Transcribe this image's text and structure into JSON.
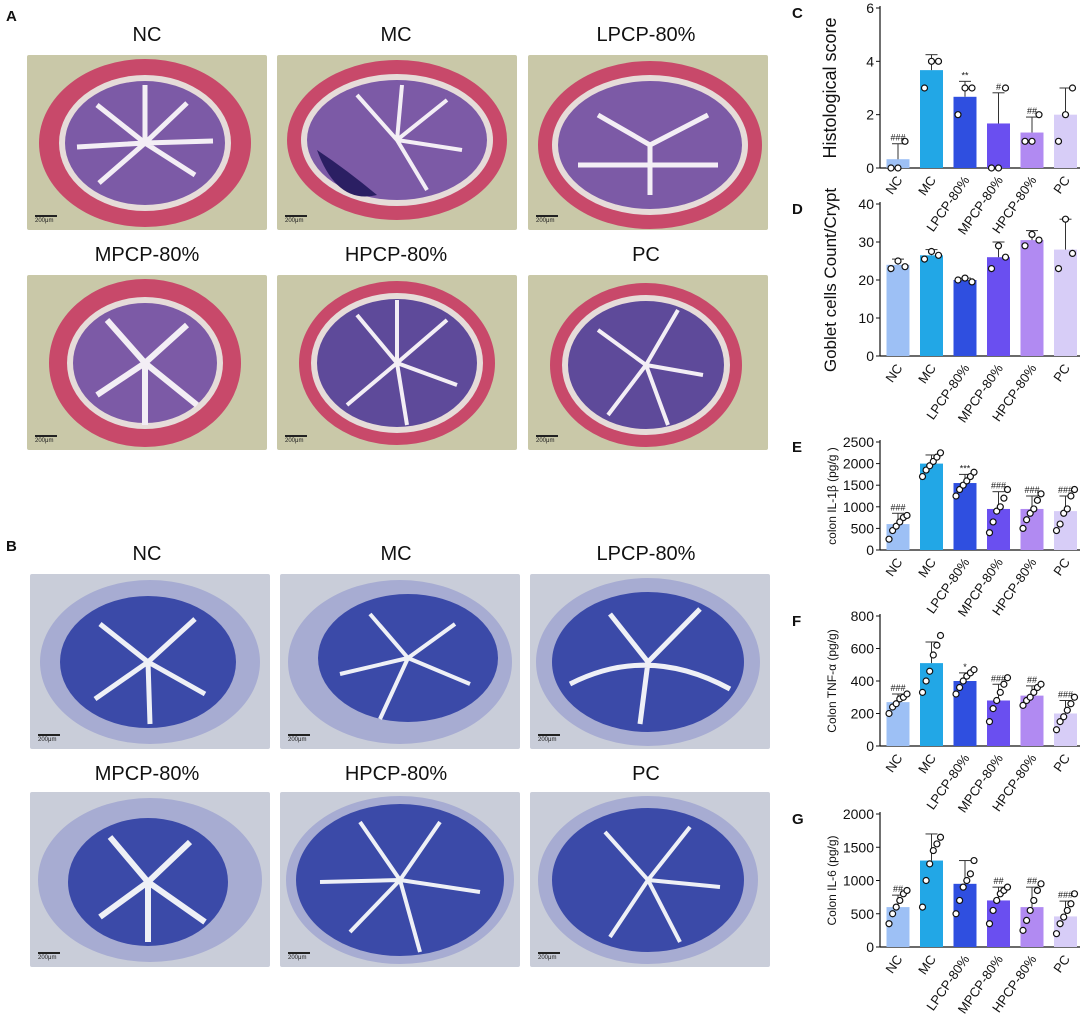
{
  "panels": {
    "A": {
      "label": "A",
      "titles": [
        "NC",
        "MC",
        "LPCP-80%",
        "MPCP-80%",
        "HPCP-80%",
        "PC"
      ],
      "scale": "200μm"
    },
    "B": {
      "label": "B",
      "titles": [
        "NC",
        "MC",
        "LPCP-80%",
        "MPCP-80%",
        "HPCP-80%",
        "PC"
      ],
      "scale": "200μm"
    }
  },
  "colors": {
    "he_bg": "#c9c8a8",
    "he_muscle": "#c8496a",
    "he_mucosa": "#7c5aa6",
    "pas_bg": "#c9cdd9",
    "pas_wall": "#a7acd2",
    "pas_mucosa": "#3b4aa8",
    "bars": [
      "#9dc0f5",
      "#22a7e6",
      "#2f4fe0",
      "#6a4ff0",
      "#b18af2",
      "#d7cdf7"
    ]
  },
  "chart_data": [
    {
      "id": "C",
      "label": "C",
      "type": "bar",
      "categories": [
        "NC",
        "MC",
        "LPCP-80%",
        "MPCP-80%",
        "HPCP-80%",
        "PC"
      ],
      "values": [
        0.33,
        3.67,
        2.67,
        1.67,
        1.33,
        2.0
      ],
      "errors": [
        0.58,
        0.58,
        0.58,
        1.15,
        0.58,
        1.0
      ],
      "points": [
        [
          0,
          0,
          1
        ],
        [
          3,
          4,
          4
        ],
        [
          2,
          3,
          3
        ],
        [
          0,
          0,
          3
        ],
        [
          1,
          1,
          2
        ],
        [
          1,
          2,
          3
        ]
      ],
      "annotations": [
        "###",
        "",
        "**",
        "#",
        "##",
        ""
      ],
      "ylabel": "Histological score",
      "ylim": [
        0,
        6
      ],
      "yticks": [
        0,
        2,
        4,
        6
      ]
    },
    {
      "id": "D",
      "label": "D",
      "type": "bar",
      "categories": [
        "NC",
        "MC",
        "LPCP-80%",
        "MPCP-80%",
        "HPCP-80%",
        "PC"
      ],
      "values": [
        24,
        26.5,
        20,
        26,
        30.5,
        28
      ],
      "errors": [
        1.5,
        1.5,
        0.5,
        4,
        2.5,
        8
      ],
      "points": [
        [
          23,
          25,
          23.5
        ],
        [
          25.5,
          27.5,
          26.5
        ],
        [
          20,
          20.5,
          19.5
        ],
        [
          23,
          29,
          26
        ],
        [
          29,
          32,
          30.5
        ],
        [
          23,
          36,
          27
        ]
      ],
      "annotations": [
        "",
        "",
        "",
        "",
        "",
        ""
      ],
      "ylabel": "Goblet cells Count/Crypt",
      "ylim": [
        0,
        40
      ],
      "yticks": [
        0,
        10,
        20,
        30,
        40
      ]
    },
    {
      "id": "E",
      "label": "E",
      "type": "bar",
      "categories": [
        "NC",
        "MC",
        "LPCP-80%",
        "MPCP-80%",
        "HPCP-80%",
        "PC"
      ],
      "values": [
        600,
        2000,
        1550,
        950,
        950,
        900
      ],
      "errors": [
        250,
        200,
        200,
        400,
        300,
        350
      ],
      "points": [
        [
          250,
          450,
          550,
          650,
          750,
          800
        ],
        [
          1700,
          1850,
          1950,
          2050,
          2150,
          2250
        ],
        [
          1250,
          1400,
          1500,
          1600,
          1700,
          1800
        ],
        [
          400,
          650,
          900,
          1000,
          1200,
          1400
        ],
        [
          500,
          700,
          850,
          950,
          1150,
          1300
        ],
        [
          450,
          600,
          850,
          950,
          1250,
          1400
        ]
      ],
      "annotations": [
        "###",
        "",
        "***",
        "###",
        "###",
        "###"
      ],
      "ylabel": "colon IL-1β (pg/g )",
      "ylim": [
        0,
        2500
      ],
      "yticks": [
        0,
        500,
        1000,
        1500,
        2000,
        2500
      ]
    },
    {
      "id": "F",
      "label": "F",
      "type": "bar",
      "categories": [
        "NC",
        "MC",
        "LPCP-80%",
        "MPCP-80%",
        "HPCP-80%",
        "PC"
      ],
      "values": [
        270,
        510,
        400,
        280,
        310,
        200
      ],
      "errors": [
        50,
        130,
        50,
        100,
        60,
        80
      ],
      "points": [
        [
          200,
          240,
          260,
          290,
          300,
          320
        ],
        [
          330,
          400,
          460,
          560,
          620,
          680
        ],
        [
          320,
          360,
          400,
          430,
          450,
          470
        ],
        [
          150,
          230,
          280,
          330,
          380,
          420
        ],
        [
          250,
          280,
          300,
          330,
          360,
          380
        ],
        [
          100,
          150,
          180,
          220,
          260,
          300
        ]
      ],
      "annotations": [
        "###",
        "",
        "*",
        "###",
        "##",
        "###"
      ],
      "ylabel": "Colon TNF-α (pg/g)",
      "ylim": [
        0,
        800
      ],
      "yticks": [
        0,
        200,
        400,
        600,
        800
      ]
    },
    {
      "id": "G",
      "label": "G",
      "type": "bar",
      "categories": [
        "NC",
        "MC",
        "LPCP-80%",
        "MPCP-80%",
        "HPCP-80%",
        "PC"
      ],
      "values": [
        600,
        1300,
        950,
        700,
        600,
        460
      ],
      "errors": [
        180,
        400,
        350,
        200,
        300,
        230
      ],
      "points": [
        [
          350,
          500,
          600,
          700,
          800,
          850
        ],
        [
          600,
          1000,
          1250,
          1450,
          1550,
          1650
        ],
        [
          500,
          700,
          900,
          1000,
          1100,
          1300
        ],
        [
          350,
          550,
          700,
          800,
          850,
          900
        ],
        [
          250,
          400,
          550,
          700,
          850,
          950
        ],
        [
          200,
          350,
          450,
          550,
          650,
          800
        ]
      ],
      "annotations": [
        "##",
        "",
        "",
        "##",
        "##",
        "###"
      ],
      "ylabel": "Colon IL-6 (pg/g)",
      "ylim": [
        0,
        2000
      ],
      "yticks": [
        0,
        500,
        1000,
        1500,
        2000
      ]
    }
  ]
}
